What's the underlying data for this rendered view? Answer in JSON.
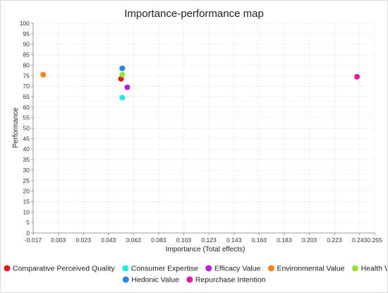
{
  "chart_data": {
    "type": "scatter",
    "title": "Importance-performance map",
    "xlabel": "Importance (Total effects)",
    "ylabel": "Performance",
    "xlim": [
      -0.017,
      0.255
    ],
    "ylim": [
      0,
      100
    ],
    "x_ticks": [
      "-0.017",
      "0.003",
      "0.023",
      "0.043",
      "0.063",
      "0.083",
      "0.103",
      "0.123",
      "0.143",
      "0.163",
      "0.183",
      "0.203",
      "0.223",
      "0.243",
      "0.255"
    ],
    "y_ticks": [
      "0",
      "5",
      "10",
      "15",
      "20",
      "25",
      "30",
      "35",
      "40",
      "45",
      "50",
      "55",
      "60",
      "65",
      "70",
      "75",
      "80",
      "85",
      "90",
      "95",
      "100"
    ],
    "grid": true,
    "legend_position": "bottom",
    "series": [
      {
        "name": "Comparative Perceived Quality",
        "color": "#e31a1c",
        "x": 0.053,
        "y": 73.5
      },
      {
        "name": "Consumer Expertise",
        "color": "#1de9e6",
        "x": 0.054,
        "y": 64.5
      },
      {
        "name": "Efficacy Value",
        "color": "#b61fd8",
        "x": 0.058,
        "y": 69.5
      },
      {
        "name": "Environmental Value",
        "color": "#f0841a",
        "x": -0.009,
        "y": 75.5
      },
      {
        "name": "Health Value",
        "color": "#9be22d",
        "x": 0.054,
        "y": 75.5
      },
      {
        "name": "Hedonic Value",
        "color": "#1e88e5",
        "x": 0.054,
        "y": 78.5
      },
      {
        "name": "Repurchase Intention",
        "color": "#e8199c",
        "x": 0.241,
        "y": 74.5
      }
    ]
  }
}
